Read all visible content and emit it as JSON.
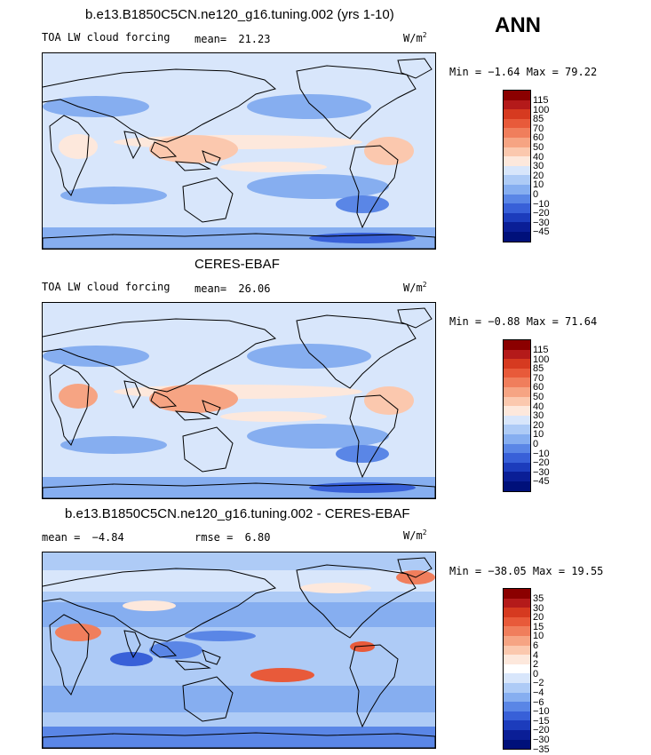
{
  "season": "ANN",
  "panels": [
    {
      "title": "b.e13.B1850C5CN.ne120_g16.tuning.002 (yrs 1-10)",
      "variable": "TOA LW cloud forcing",
      "stat_label": "mean=",
      "stat_value": "21.23",
      "units_base": "W/m",
      "units_exp": "2",
      "minmax": "Min =   −1.64 Max =   79.22",
      "colorbar_labels": [
        "115",
        "100",
        "85",
        "70",
        "60",
        "50",
        "40",
        "30",
        "20",
        "10",
        "0",
        "−10",
        "−20",
        "−30",
        "−45"
      ]
    },
    {
      "title": "CERES-EBAF",
      "variable": "TOA LW cloud forcing",
      "stat_label": "mean=",
      "stat_value": "26.06",
      "units_base": "W/m",
      "units_exp": "2",
      "minmax": "Min =   −0.88 Max =   71.64",
      "colorbar_labels": [
        "115",
        "100",
        "85",
        "70",
        "60",
        "50",
        "40",
        "30",
        "20",
        "10",
        "0",
        "−10",
        "−20",
        "−30",
        "−45"
      ]
    },
    {
      "title": "b.e13.B1850C5CN.ne120_g16.tuning.002 - CERES-EBAF",
      "mean_label": "mean =",
      "mean_value": "−4.84",
      "rmse_label": "rmse =",
      "rmse_value": "6.80",
      "units_base": "W/m",
      "units_exp": "2",
      "minmax": "Min = −38.05 Max =   19.55",
      "colorbar_labels": [
        "35",
        "30",
        "20",
        "15",
        "10",
        "6",
        "4",
        "2",
        "0",
        "−2",
        "−4",
        "−6",
        "−10",
        "−15",
        "−20",
        "−30",
        "−35"
      ]
    }
  ],
  "colors": {
    "abs_scale": [
      "#8b0000",
      "#b41a1a",
      "#d63a20",
      "#e85a3a",
      "#f07e5c",
      "#f6a483",
      "#fbc8ae",
      "#fde8dc",
      "#d8e6fb",
      "#aecbf6",
      "#86aef0",
      "#5a86e6",
      "#3860d8",
      "#1c3cbc",
      "#0a1e96",
      "#00107a"
    ],
    "diff_scale": [
      "#8b0000",
      "#b41a1a",
      "#d63a20",
      "#e85a3a",
      "#f07e5c",
      "#f6a483",
      "#fbc8ae",
      "#fde8dc",
      "#ffffff",
      "#d8e6fb",
      "#aecbf6",
      "#86aef0",
      "#5a86e6",
      "#3860d8",
      "#1c3cbc",
      "#0a1e96",
      "#00107a"
    ]
  },
  "chart_data": [
    {
      "type": "heatmap",
      "title": "b.e13.B1850C5CN.ne120_g16.tuning.002 (yrs 1-10)",
      "variable": "TOA LW cloud forcing",
      "units": "W/m2",
      "mean": 21.23,
      "min": -1.64,
      "max": 79.22,
      "levels": [
        -45,
        -30,
        -20,
        -10,
        0,
        10,
        20,
        30,
        40,
        50,
        60,
        70,
        85,
        100,
        115
      ]
    },
    {
      "type": "heatmap",
      "title": "CERES-EBAF",
      "variable": "TOA LW cloud forcing",
      "units": "W/m2",
      "mean": 26.06,
      "min": -0.88,
      "max": 71.64,
      "levels": [
        -45,
        -30,
        -20,
        -10,
        0,
        10,
        20,
        30,
        40,
        50,
        60,
        70,
        85,
        100,
        115
      ]
    },
    {
      "type": "heatmap",
      "title": "b.e13.B1850C5CN.ne120_g16.tuning.002 - CERES-EBAF",
      "units": "W/m2",
      "mean": -4.84,
      "rmse": 6.8,
      "min": -38.05,
      "max": 19.55,
      "levels": [
        -35,
        -30,
        -20,
        -15,
        -10,
        -6,
        -4,
        -2,
        0,
        2,
        4,
        6,
        10,
        15,
        20,
        30,
        35
      ]
    }
  ]
}
